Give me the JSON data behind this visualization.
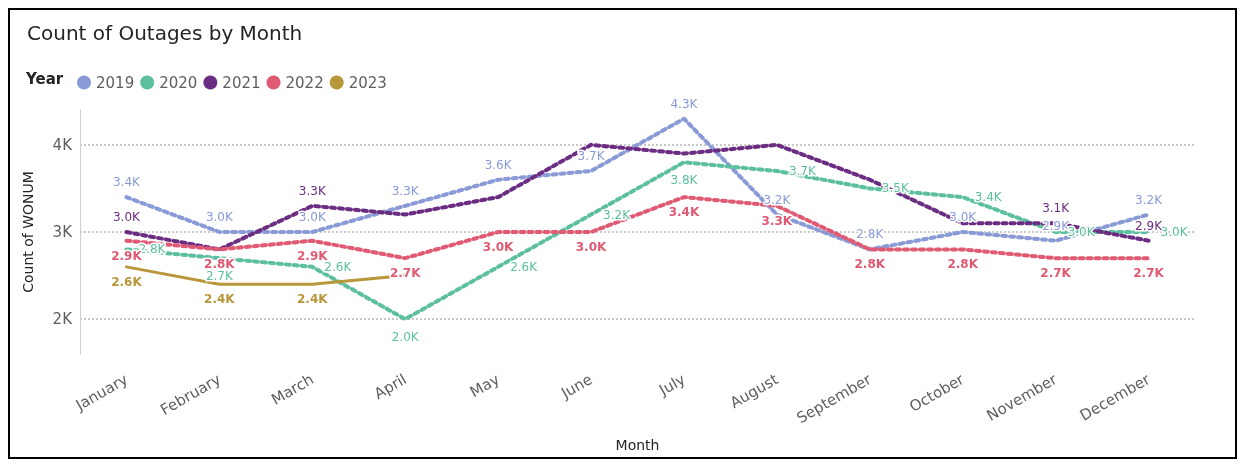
{
  "chart_data": {
    "type": "line",
    "title": "Count of Outages by Month",
    "xlabel": "Month",
    "ylabel": "Count of WONUM",
    "legend_title": "Year",
    "legend": "top left",
    "grid": "y",
    "marker": "none",
    "categories": [
      "January",
      "February",
      "March",
      "April",
      "May",
      "June",
      "July",
      "August",
      "September",
      "October",
      "November",
      "December"
    ],
    "ylim": [
      1600,
      4400
    ],
    "yticks": [
      {
        "value": 2000,
        "label": "2K"
      },
      {
        "value": 3000,
        "label": "3K"
      },
      {
        "value": 4000,
        "label": "4K"
      }
    ],
    "series": [
      {
        "name": "2019",
        "color": "#8a9ad6",
        "line_style": "dotted",
        "values": [
          3400,
          3000,
          3000,
          3300,
          3600,
          3700,
          4300,
          3200,
          2800,
          3000,
          2900,
          3200
        ],
        "value_labels": [
          "3.4K",
          "3.0K",
          "3.0K",
          "3.3K",
          "3.6K",
          "3.7K",
          "4.3K",
          "3.2K",
          "2.8K",
          "3.0K",
          "2.9K",
          "3.2K"
        ]
      },
      {
        "name": "2020",
        "color": "#5cbf9f",
        "line_style": "dotted",
        "values": [
          2800,
          2700,
          2600,
          2000,
          2600,
          3200,
          3800,
          3700,
          3500,
          3400,
          3000,
          3000
        ],
        "value_labels": [
          "2.8K",
          "2.7K",
          "2.6K",
          "2.0K",
          "2.6K",
          "3.2K",
          "3.8K",
          "3.7K",
          "3.5K",
          "3.4K",
          "3.0K",
          "3.0K"
        ]
      },
      {
        "name": "2021",
        "color": "#6b2d82",
        "line_style": "dotted",
        "values": [
          3000,
          2800,
          3300,
          3200,
          3400,
          4000,
          3900,
          4000,
          3600,
          3100,
          3100,
          2900
        ],
        "value_labels": [
          "3.0K",
          null,
          "3.3K",
          null,
          null,
          null,
          null,
          null,
          null,
          null,
          "3.1K",
          "2.9K"
        ]
      },
      {
        "name": "2022",
        "color": "#e05a73",
        "line_style": "dotted",
        "values": [
          2900,
          2800,
          2900,
          2700,
          3000,
          3000,
          3400,
          3300,
          2800,
          2800,
          2700,
          2700
        ],
        "value_labels": [
          "2.9K",
          "2.8K",
          "2.9K",
          "2.7K",
          "3.0K",
          "3.0K",
          "3.4K",
          "3.3K",
          "2.8K",
          "2.8K",
          "2.7K",
          "2.7K"
        ]
      },
      {
        "name": "2023",
        "color": "#b8963a",
        "line_style": "solid",
        "values": [
          2600,
          2400,
          2400,
          2500,
          null,
          null,
          null,
          null,
          null,
          null,
          null,
          null
        ],
        "value_labels": [
          "2.6K",
          "2.4K",
          "2.4K",
          null,
          null,
          null,
          null,
          null,
          null,
          null,
          null,
          null
        ]
      }
    ]
  }
}
